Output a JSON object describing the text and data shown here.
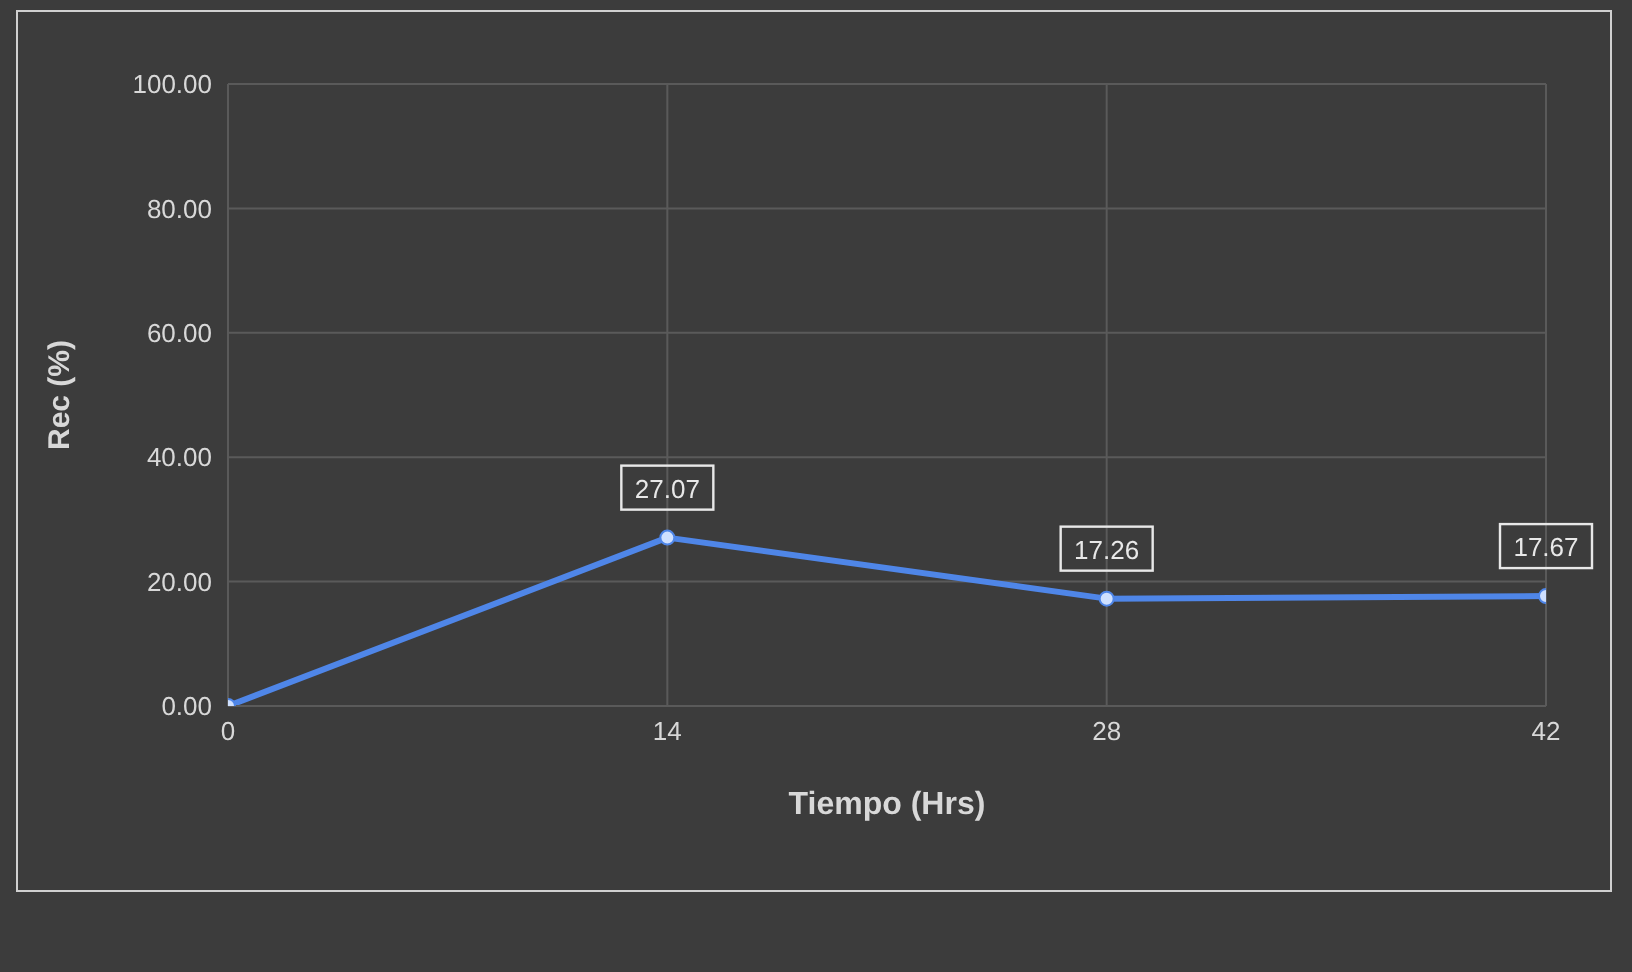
{
  "chart_data": {
    "type": "line",
    "xlabel": "Tiempo (Hrs)",
    "ylabel": "Rec (%)",
    "x": [
      0,
      14,
      28,
      42
    ],
    "series": [
      {
        "color": "#4f86e8",
        "values": [
          0,
          27.07,
          17.26,
          17.67
        ],
        "value_labels": [
          null,
          "27.07",
          "17.26",
          "17.67"
        ]
      }
    ],
    "xlim": [
      0,
      42
    ],
    "xticks": [
      0,
      14,
      28,
      42
    ],
    "ylim": [
      0,
      100
    ],
    "yticks": [
      {
        "value": 0,
        "label": "0.00"
      },
      {
        "value": 20,
        "label": "20.00"
      },
      {
        "value": 40,
        "label": "40.00"
      },
      {
        "value": 60,
        "label": "60.00"
      },
      {
        "value": 80,
        "label": "80.00"
      },
      {
        "value": 100,
        "label": "100.00"
      }
    ],
    "grid": true,
    "marker": "circle",
    "line_style": "solid",
    "legend": false
  }
}
